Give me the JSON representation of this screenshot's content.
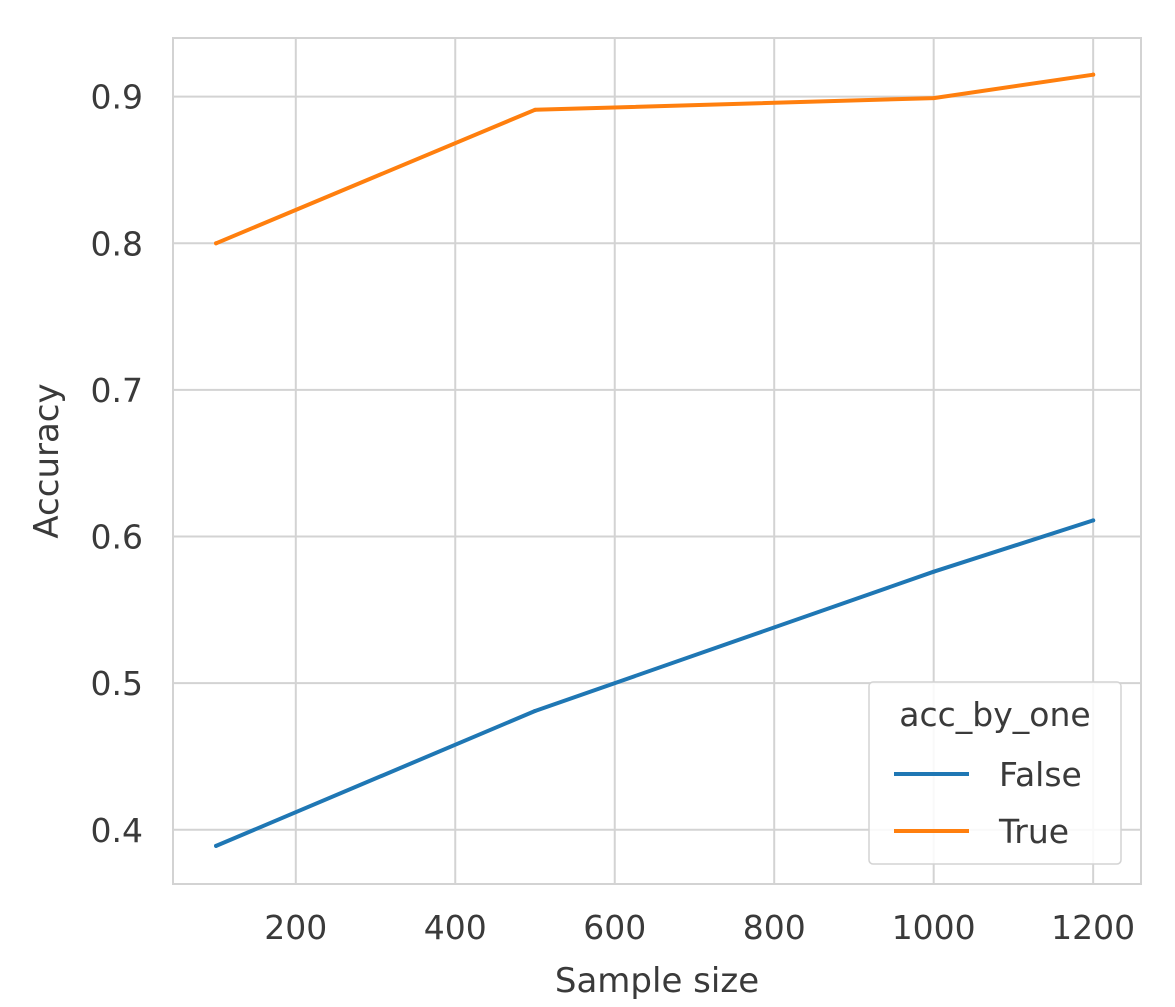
{
  "chart_data": {
    "type": "line",
    "xlabel": "Sample size",
    "ylabel": "Accuracy",
    "xlim": [
      46,
      1260
    ],
    "ylim": [
      0.363,
      0.94
    ],
    "xticks": [
      200,
      400,
      600,
      800,
      1000,
      1200
    ],
    "xtick_labels": [
      "200",
      "400",
      "600",
      "800",
      "1000",
      "1200"
    ],
    "yticks": [
      0.4,
      0.5,
      0.6,
      0.7,
      0.8,
      0.9
    ],
    "ytick_labels": [
      "0.4",
      "0.5",
      "0.6",
      "0.7",
      "0.8",
      "0.9"
    ],
    "grid": true,
    "legend": {
      "title": "acc_by_one",
      "placement": "lower-right"
    },
    "series": [
      {
        "name": "False",
        "color": "#1f77b4",
        "x": [
          100,
          500,
          1000,
          1200
        ],
        "y": [
          0.389,
          0.481,
          0.576,
          0.611
        ]
      },
      {
        "name": "True",
        "color": "#ff7f0e",
        "x": [
          100,
          500,
          1000,
          1200
        ],
        "y": [
          0.8,
          0.891,
          0.899,
          0.915
        ]
      }
    ]
  }
}
